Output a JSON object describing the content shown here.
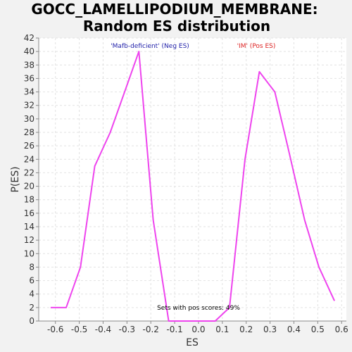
{
  "chart_data": {
    "type": "line",
    "title_line1": "GOCC_LAMELLIPODIUM_MEMBRANE:",
    "title_line2": "Random ES distribution",
    "xlabel": "ES",
    "ylabel": "P(ES)",
    "xlim": [
      -0.67,
      0.62
    ],
    "ylim": [
      0,
      42
    ],
    "x_ticks": [
      -0.6,
      -0.5,
      -0.4,
      -0.3,
      -0.2,
      -0.1,
      0.0,
      0.1,
      0.2,
      0.3,
      0.4,
      0.5,
      0.6
    ],
    "x_tick_labels": [
      "-0.6",
      "-0.5",
      "-0.4",
      "-0.3",
      "-0.2",
      "-0.1",
      "0.0",
      "0.1",
      "0.2",
      "0.3",
      "0.4",
      "0.5",
      "0.6"
    ],
    "y_ticks": [
      0,
      2,
      4,
      6,
      8,
      10,
      12,
      14,
      16,
      18,
      20,
      22,
      24,
      26,
      28,
      30,
      32,
      34,
      36,
      38,
      40,
      42
    ],
    "y_tick_labels": [
      "0",
      "2",
      "4",
      "6",
      "8",
      "10",
      "12",
      "14",
      "16",
      "18",
      "20",
      "22",
      "24",
      "26",
      "28",
      "30",
      "32",
      "34",
      "36",
      "38",
      "40",
      "42"
    ],
    "grid": true,
    "line_color": "#ee44ee",
    "series": [
      {
        "x": [
          -0.62,
          -0.555,
          -0.495,
          -0.435,
          -0.37,
          -0.31,
          -0.25,
          -0.19,
          -0.125,
          -0.065,
          0.005,
          0.07,
          0.13,
          0.195,
          0.255,
          0.32,
          0.38,
          0.445,
          0.505,
          0.57
        ],
        "y": [
          2,
          2,
          8,
          23,
          28,
          34,
          40,
          15,
          0,
          0,
          0,
          0,
          2,
          24,
          37,
          34,
          25,
          15,
          8,
          3
        ]
      }
    ],
    "annotations": [
      {
        "text": "'Mafb-deficient' (Neg ES)",
        "color": "#2222aa"
      },
      {
        "text": "'IM' (Pos ES)",
        "color": "#dd2222"
      },
      {
        "text": "Sets with pos scores: 49%",
        "color": "#000000"
      }
    ]
  }
}
